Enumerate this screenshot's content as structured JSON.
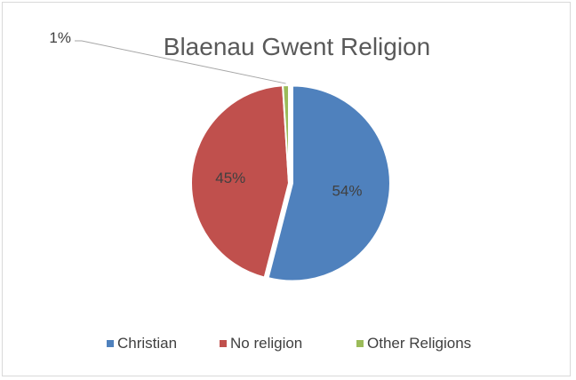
{
  "chart_data": {
    "type": "pie",
    "title": "Blaenau Gwent Religion",
    "categories": [
      "Christian",
      "No religion",
      "Other Religions"
    ],
    "values": [
      54,
      45,
      1
    ],
    "labels": [
      "54%",
      "45%",
      "1%"
    ],
    "colors": [
      "#4f81bd",
      "#c0504d",
      "#9bbb59"
    ],
    "legend_position": "bottom",
    "exploded_slice": "Christian"
  }
}
